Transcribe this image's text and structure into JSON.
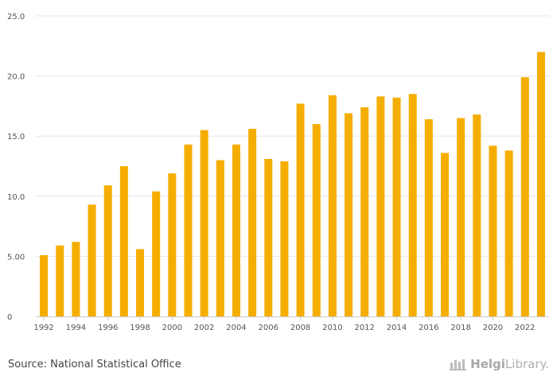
{
  "chart_data": {
    "type": "bar",
    "title": "",
    "xlabel": "",
    "ylabel": "",
    "ylim": [
      0,
      25
    ],
    "y_ticks": [
      "0",
      "5.00",
      "10.0",
      "15.0",
      "20.0",
      "25.0"
    ],
    "x_tick_labels": [
      "1992",
      "1994",
      "1996",
      "1998",
      "2000",
      "2002",
      "2004",
      "2006",
      "2008",
      "2010",
      "2012",
      "2014",
      "2016",
      "2018",
      "2020",
      "2022"
    ],
    "categories": [
      "1992",
      "1993",
      "1994",
      "1995",
      "1996",
      "1997",
      "1998",
      "1999",
      "2000",
      "2001",
      "2002",
      "2003",
      "2004",
      "2005",
      "2006",
      "2007",
      "2008",
      "2009",
      "2010",
      "2011",
      "2012",
      "2013",
      "2014",
      "2015",
      "2016",
      "2017",
      "2018",
      "2019",
      "2020",
      "2021",
      "2022",
      "2023"
    ],
    "values": [
      5.1,
      5.9,
      6.2,
      9.3,
      10.9,
      12.5,
      5.6,
      10.4,
      11.9,
      14.3,
      15.5,
      13.0,
      14.3,
      15.6,
      13.1,
      12.9,
      17.7,
      16.0,
      18.4,
      16.9,
      17.4,
      18.3,
      18.2,
      18.5,
      16.4,
      13.6,
      16.5,
      16.8,
      14.2,
      13.8,
      19.9,
      22.0
    ],
    "grid": true,
    "bar_color": "#F5AE00"
  },
  "footer": {
    "source": "Source: National Statistical Office",
    "logo_bold": "Helgi",
    "logo_rest": "Library."
  }
}
